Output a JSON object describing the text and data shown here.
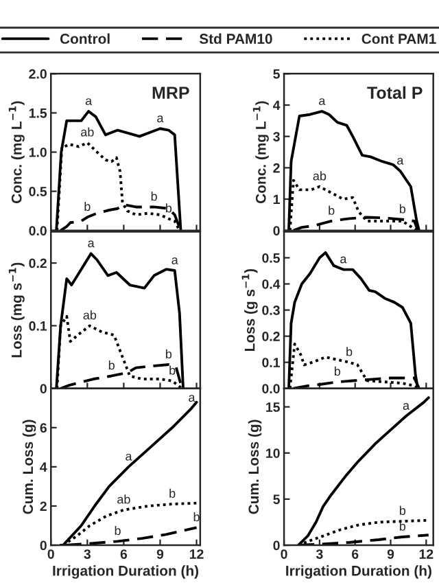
{
  "chart_data": [
    {
      "type": "line",
      "title": "MRP",
      "ylabel": "Conc. (mg L$^{−1}$)",
      "xlim": [
        0,
        12.3
      ],
      "xticks": [
        0,
        3,
        6,
        9,
        12
      ],
      "ylim": [
        0,
        2
      ],
      "yticks": [
        {
          "value": 0,
          "label": "0.0"
        },
        0.5,
        {
          "value": 1,
          "label": "1.0"
        },
        1.5,
        {
          "value": 2,
          "label": "2.0"
        }
      ],
      "tick_labels": "y",
      "legend": "top",
      "series": [
        {
          "name": "Control",
          "color": "#000000",
          "line_style": "solid",
          "x": [
            0.45,
            0.85,
            1.3,
            2.5,
            3.1,
            3.7,
            4.5,
            5.5,
            7.3,
            9.0,
            9.7,
            10.2,
            10.7
          ],
          "values": [
            0,
            1.0,
            1.4,
            1.4,
            1.52,
            1.45,
            1.22,
            1.28,
            1.2,
            1.3,
            1.28,
            1.22,
            0
          ]
        },
        {
          "name": "Std PAM10",
          "color": "#000000",
          "line_style": "dashed",
          "x": [
            0.8,
            1.3,
            1.6,
            2.5,
            3.0,
            3.8,
            4.8,
            5.5,
            6.0,
            7.0,
            8.5,
            9.7,
            10.2,
            10.7
          ],
          "values": [
            0,
            0.05,
            0.1,
            0.12,
            0.17,
            0.22,
            0.26,
            0.28,
            0.33,
            0.3,
            0.3,
            0.28,
            0.2,
            0
          ]
        },
        {
          "name": "Cont PAM1",
          "color": "#000000",
          "line_style": "dotted",
          "x": [
            0.5,
            0.9,
            1.5,
            2.3,
            3.0,
            3.8,
            4.5,
            5.0,
            5.4,
            5.7,
            5.9,
            6.3,
            7.0,
            8.0,
            9.0,
            9.7,
            10.2,
            10.6
          ],
          "values": [
            0,
            1.05,
            1.1,
            1.07,
            1.12,
            1.0,
            0.9,
            0.88,
            0.93,
            0.75,
            0.35,
            0.25,
            0.2,
            0.22,
            0.2,
            0.15,
            0.12,
            0
          ]
        }
      ],
      "annotations": [
        {
          "text": "a",
          "x": 3.1,
          "y": 1.52
        },
        {
          "text": "a",
          "x": 9.0,
          "y": 1.3
        },
        {
          "text": "ab",
          "x": 3.0,
          "y": 1.12
        },
        {
          "text": "b",
          "x": 3.0,
          "y": 0.17
        },
        {
          "text": "b",
          "x": 8.5,
          "y": 0.3
        },
        {
          "text": "b",
          "x": 9.7,
          "y": 0.15
        }
      ]
    },
    {
      "type": "line",
      "title": "Total P",
      "ylabel": "Conc. (mg L$^{−1}$)",
      "xlim": [
        0,
        12.6
      ],
      "xticks": [
        0,
        3,
        6,
        9,
        12
      ],
      "ylim": [
        0,
        5
      ],
      "yticks": [
        0,
        1,
        2,
        3,
        4,
        5
      ],
      "tick_labels": "y",
      "series": [
        {
          "color": "#000000",
          "line_style": "solid",
          "x": [
            0.4,
            0.6,
            1.3,
            2.2,
            3.2,
            3.8,
            4.5,
            5.3,
            5.8,
            6.6,
            7.3,
            8.3,
            9.2,
            9.8,
            10.7,
            11.2,
            11.4
          ],
          "values": [
            0,
            2.2,
            3.65,
            3.7,
            3.8,
            3.7,
            3.45,
            3.35,
            3.0,
            2.4,
            2.35,
            2.2,
            2.1,
            1.9,
            1.4,
            0.3,
            0
          ]
        },
        {
          "color": "#000000",
          "line_style": "dashed",
          "x": [
            0.8,
            1.5,
            2.5,
            4.0,
            5.5,
            7.0,
            8.5,
            10.0,
            11.0,
            11.3
          ],
          "values": [
            0,
            0.1,
            0.15,
            0.3,
            0.38,
            0.42,
            0.4,
            0.35,
            0.3,
            0
          ]
        },
        {
          "color": "#000000",
          "line_style": "dotted",
          "x": [
            0.5,
            0.8,
            1.3,
            2.3,
            3.0,
            4.0,
            5.0,
            5.8,
            6.3,
            7.0,
            8.5,
            10.0,
            10.8,
            11.2
          ],
          "values": [
            0,
            1.6,
            1.3,
            1.3,
            1.4,
            1.2,
            1.0,
            1.05,
            0.6,
            0.3,
            0.3,
            0.3,
            0.1,
            0
          ]
        }
      ],
      "annotations": [
        {
          "text": "a",
          "x": 3.2,
          "y": 3.8
        },
        {
          "text": "a",
          "x": 9.8,
          "y": 1.9
        },
        {
          "text": "ab",
          "x": 3.0,
          "y": 1.4
        },
        {
          "text": "b",
          "x": 4.0,
          "y": 0.3
        },
        {
          "text": "b",
          "x": 10.0,
          "y": 0.35
        }
      ]
    },
    {
      "type": "line",
      "ylabel": "Loss (mg s$^{−1}$)",
      "xlim": [
        0,
        12.3
      ],
      "xticks": [
        0,
        3,
        6,
        9,
        12
      ],
      "ylim": [
        0,
        0.25
      ],
      "yticks": [
        0,
        0.1,
        0.2
      ],
      "tick_labels": "y",
      "series": [
        {
          "color": "#000000",
          "line_style": "solid",
          "x": [
            0.45,
            0.8,
            1.3,
            1.7,
            2.5,
            3.3,
            3.8,
            4.7,
            5.4,
            6.5,
            7.7,
            8.5,
            9.5,
            10.2,
            10.6,
            10.9
          ],
          "values": [
            0,
            0.1,
            0.175,
            0.165,
            0.19,
            0.215,
            0.205,
            0.18,
            0.185,
            0.165,
            0.16,
            0.18,
            0.19,
            0.188,
            0.12,
            0
          ]
        },
        {
          "color": "#000000",
          "line_style": "dashed",
          "x": [
            0.8,
            1.5,
            2.5,
            3.5,
            5.0,
            6.3,
            7.0,
            8.5,
            9.7,
            10.3,
            10.8
          ],
          "values": [
            0,
            0.005,
            0.01,
            0.015,
            0.02,
            0.025,
            0.033,
            0.036,
            0.038,
            0.035,
            0
          ]
        },
        {
          "color": "#000000",
          "line_style": "dotted",
          "x": [
            0.5,
            0.8,
            1.3,
            1.6,
            2.2,
            3.2,
            4.2,
            5.2,
            5.7,
            6.5,
            7.5,
            9.0,
            10.0,
            10.8
          ],
          "values": [
            0,
            0.1,
            0.115,
            0.075,
            0.085,
            0.1,
            0.09,
            0.085,
            0.06,
            0.02,
            0.015,
            0.015,
            0.012,
            0
          ]
        }
      ],
      "annotations": [
        {
          "text": "a",
          "x": 3.3,
          "y": 0.215
        },
        {
          "text": "a",
          "x": 10.2,
          "y": 0.188
        },
        {
          "text": "ab",
          "x": 3.2,
          "y": 0.1
        },
        {
          "text": "b",
          "x": 9.7,
          "y": 0.038
        },
        {
          "text": "b",
          "x": 5.0,
          "y": 0.02
        },
        {
          "text": "b",
          "x": 10.0,
          "y": 0.012
        }
      ]
    },
    {
      "type": "line",
      "ylabel": "Loss (g s$^{−1}$)",
      "xlim": [
        0,
        12.6
      ],
      "xticks": [
        0,
        3,
        6,
        9,
        12
      ],
      "ylim": [
        0,
        0.6
      ],
      "yticks": [
        {
          "value": 0,
          "label": "0.0"
        },
        0.1,
        0.2,
        0.3,
        0.4,
        0.5
      ],
      "tick_labels": "y",
      "series": [
        {
          "color": "#000000",
          "line_style": "solid",
          "x": [
            0.4,
            0.6,
            0.9,
            1.5,
            2.2,
            3.0,
            3.5,
            4.2,
            5.0,
            5.8,
            6.5,
            7.2,
            7.7,
            8.5,
            9.3,
            10.0,
            10.7,
            11.1,
            11.3
          ],
          "values": [
            0,
            0.25,
            0.33,
            0.4,
            0.44,
            0.5,
            0.52,
            0.47,
            0.455,
            0.455,
            0.42,
            0.375,
            0.37,
            0.345,
            0.33,
            0.31,
            0.25,
            0.05,
            0
          ]
        },
        {
          "color": "#000000",
          "line_style": "dashed",
          "x": [
            0.8,
            2.0,
            3.0,
            4.5,
            6.0,
            7.5,
            9.0,
            11.0,
            11.4
          ],
          "values": [
            0,
            0.01,
            0.015,
            0.025,
            0.03,
            0.035,
            0.04,
            0.04,
            0
          ]
        },
        {
          "color": "#000000",
          "line_style": "dotted",
          "x": [
            0.5,
            0.9,
            1.4,
            1.7,
            2.4,
            3.5,
            4.5,
            5.5,
            6.2,
            7.0,
            8.5,
            10.0,
            11.0,
            11.3
          ],
          "values": [
            0,
            0.17,
            0.13,
            0.09,
            0.1,
            0.12,
            0.11,
            0.1,
            0.09,
            0.03,
            0.025,
            0.02,
            0.01,
            0
          ]
        }
      ],
      "annotations": [
        {
          "text": "a",
          "x": 5.0,
          "y": 0.455
        },
        {
          "text": "b",
          "x": 5.5,
          "y": 0.1
        },
        {
          "text": "b",
          "x": 4.5,
          "y": 0.025
        }
      ]
    },
    {
      "type": "line",
      "ylabel": "Cum. Loss (g)",
      "xlabel": "Irrigation Duration (h)",
      "xlim": [
        0,
        12.3
      ],
      "xticks": [
        0,
        3,
        6,
        9,
        12
      ],
      "ylim": [
        0,
        8
      ],
      "yticks": [
        0,
        2,
        4,
        6
      ],
      "series": [
        {
          "color": "#000000",
          "line_style": "solid",
          "x": [
            0.8,
            1.0,
            2.5,
            3.6,
            4.8,
            6.4,
            8.2,
            10.0,
            11.6,
            12.0
          ],
          "values": [
            0,
            0,
            1.0,
            2.0,
            3.0,
            4.0,
            5.0,
            6.0,
            7.0,
            7.3
          ]
        },
        {
          "color": "#000000",
          "line_style": "dashed",
          "x": [
            1.2,
            3.5,
            5.5,
            7.5,
            9.5,
            12.0
          ],
          "values": [
            0,
            0.1,
            0.2,
            0.35,
            0.55,
            0.9
          ]
        },
        {
          "color": "#000000",
          "line_style": "dotted",
          "x": [
            1.0,
            2.2,
            3.2,
            4.6,
            6.0,
            8.0,
            10.0,
            12.0
          ],
          "values": [
            0,
            0.5,
            1.0,
            1.5,
            1.8,
            2.0,
            2.1,
            2.15
          ]
        }
      ],
      "annotations": [
        {
          "text": "a",
          "x": 11.6,
          "y": 7.0
        },
        {
          "text": "a",
          "x": 6.4,
          "y": 4.0
        },
        {
          "text": "ab",
          "x": 6.0,
          "y": 1.8
        },
        {
          "text": "b",
          "x": 10.0,
          "y": 2.1
        },
        {
          "text": "b",
          "x": 12.0,
          "y": 0.9
        },
        {
          "text": "b",
          "x": 5.5,
          "y": 0.2
        }
      ]
    },
    {
      "type": "line",
      "ylabel": "Cum. Loss (g)",
      "xlabel": "Irrigation Duration (h)",
      "xlim": [
        0,
        12.6
      ],
      "xticks": [
        0,
        3,
        6,
        9,
        12
      ],
      "ylim": [
        0,
        17
      ],
      "yticks": [
        0,
        5,
        10,
        15
      ],
      "series": [
        {
          "color": "#000000",
          "line_style": "solid",
          "x": [
            1.2,
            2.0,
            2.7,
            3.3,
            4.0,
            5.2,
            6.2,
            7.7,
            9.0,
            10.3,
            11.8,
            12.2
          ],
          "values": [
            0,
            1.0,
            2.5,
            4.2,
            5.5,
            7.5,
            9.0,
            11.0,
            12.5,
            14.0,
            15.5,
            16.0
          ]
        },
        {
          "color": "#000000",
          "line_style": "dashed",
          "x": [
            1.2,
            3.0,
            5.5,
            8.0,
            10.0,
            12.2
          ],
          "values": [
            0,
            0.1,
            0.3,
            0.6,
            0.9,
            1.1
          ]
        },
        {
          "color": "#000000",
          "line_style": "dotted",
          "x": [
            1.2,
            2.2,
            3.3,
            4.8,
            6.3,
            8.0,
            10.0,
            12.2
          ],
          "values": [
            0,
            0.5,
            1.0,
            1.7,
            2.2,
            2.5,
            2.6,
            2.7
          ]
        }
      ],
      "annotations": [
        {
          "text": "a",
          "x": 10.3,
          "y": 14.0
        },
        {
          "text": "b",
          "x": 10.0,
          "y": 2.6
        },
        {
          "text": "b",
          "x": 10.0,
          "y": 0.9
        }
      ]
    }
  ]
}
